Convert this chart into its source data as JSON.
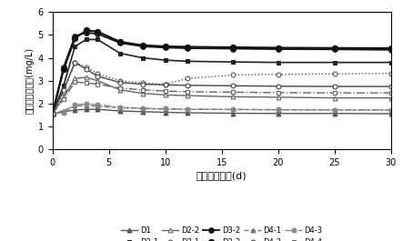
{
  "x": [
    0,
    1,
    2,
    3,
    4,
    6,
    8,
    10,
    12,
    16,
    20,
    25,
    30
  ],
  "series_order": [
    "D1",
    "D2-1",
    "D2-2",
    "D3-1",
    "D3-2",
    "D3-3",
    "D4-1",
    "D4-2",
    "D4-3",
    "D4-4"
  ],
  "series": {
    "D1": [
      1.55,
      1.65,
      1.72,
      1.75,
      1.75,
      1.68,
      1.65,
      1.62,
      1.6,
      1.58,
      1.57,
      1.57,
      1.56
    ],
    "D2-1": [
      1.55,
      2.8,
      4.5,
      4.8,
      4.8,
      4.2,
      4.0,
      3.9,
      3.85,
      3.82,
      3.8,
      3.8,
      3.8
    ],
    "D2-2": [
      1.55,
      2.3,
      3.1,
      3.15,
      3.0,
      2.6,
      2.45,
      2.38,
      2.35,
      2.3,
      2.28,
      2.25,
      2.25
    ],
    "D3-1": [
      1.55,
      2.5,
      3.8,
      3.6,
      3.3,
      3.0,
      2.9,
      2.85,
      3.1,
      3.25,
      3.28,
      3.3,
      3.32
    ],
    "D3-2": [
      1.55,
      3.6,
      4.95,
      5.1,
      5.05,
      4.65,
      4.5,
      4.45,
      4.42,
      4.4,
      4.38,
      4.37,
      4.35
    ],
    "D3-3": [
      1.55,
      3.5,
      4.85,
      5.2,
      5.15,
      4.7,
      4.55,
      4.5,
      4.48,
      4.46,
      4.44,
      4.43,
      4.42
    ],
    "D4-1": [
      1.55,
      1.7,
      1.9,
      1.92,
      1.88,
      1.82,
      1.78,
      1.76,
      1.75,
      1.74,
      1.73,
      1.72,
      1.72
    ],
    "D4-2": [
      1.55,
      2.6,
      3.8,
      3.5,
      3.2,
      2.92,
      2.85,
      2.82,
      2.8,
      2.78,
      2.76,
      2.75,
      2.75
    ],
    "D4-3": [
      1.55,
      1.62,
      1.95,
      1.98,
      1.95,
      1.85,
      1.8,
      1.78,
      1.76,
      1.75,
      1.74,
      1.73,
      1.73
    ],
    "D4-4": [
      1.55,
      2.2,
      2.95,
      2.9,
      2.85,
      2.68,
      2.6,
      2.55,
      2.52,
      2.5,
      2.48,
      2.47,
      2.47
    ]
  },
  "styles": {
    "D1": {
      "color": "#555555",
      "linestyle": "-",
      "marker": "^",
      "markersize": 3.5,
      "markerfacecolor": "#555555",
      "linewidth": 1.0
    },
    "D2-1": {
      "color": "#222222",
      "linestyle": "-",
      "marker": "s",
      "markersize": 3.5,
      "markerfacecolor": "#222222",
      "linewidth": 1.2
    },
    "D2-2": {
      "color": "#666666",
      "linestyle": "-",
      "marker": "^",
      "markersize": 3.5,
      "markerfacecolor": "white",
      "linewidth": 1.0
    },
    "D3-1": {
      "color": "#555555",
      "linestyle": ":",
      "marker": "o",
      "markersize": 3.5,
      "markerfacecolor": "white",
      "linewidth": 1.0
    },
    "D3-2": {
      "color": "#111111",
      "linestyle": "-",
      "marker": "o",
      "markersize": 4,
      "markerfacecolor": "#111111",
      "linewidth": 1.3
    },
    "D3-3": {
      "color": "#111111",
      "linestyle": "-",
      "marker": "o",
      "markersize": 4.5,
      "markerfacecolor": "#111111",
      "linewidth": 1.5
    },
    "D4-1": {
      "color": "#777777",
      "linestyle": "--",
      "marker": "^",
      "markersize": 3.5,
      "markerfacecolor": "#777777",
      "linewidth": 1.0
    },
    "D4-2": {
      "color": "#444444",
      "linestyle": "-",
      "marker": "o",
      "markersize": 3.5,
      "markerfacecolor": "white",
      "linewidth": 1.0
    },
    "D4-3": {
      "color": "#888888",
      "linestyle": "-.",
      "marker": "o",
      "markersize": 3.5,
      "markerfacecolor": "#888888",
      "linewidth": 1.0
    },
    "D4-4": {
      "color": "#666666",
      "linestyle": "-.",
      "marker": "s",
      "markersize": 3.5,
      "markerfacecolor": "white",
      "linewidth": 1.0
    }
  },
  "ylabel": "上覆水总氮浓度(mg/L)",
  "xlabel": "释放试验天数(d)",
  "ylim": [
    0,
    6
  ],
  "yticks": [
    0,
    1,
    2,
    3,
    4,
    5,
    6
  ],
  "xticks": [
    0,
    5,
    10,
    15,
    20,
    25,
    30
  ],
  "figsize": [
    4.43,
    2.65
  ],
  "dpi": 100
}
